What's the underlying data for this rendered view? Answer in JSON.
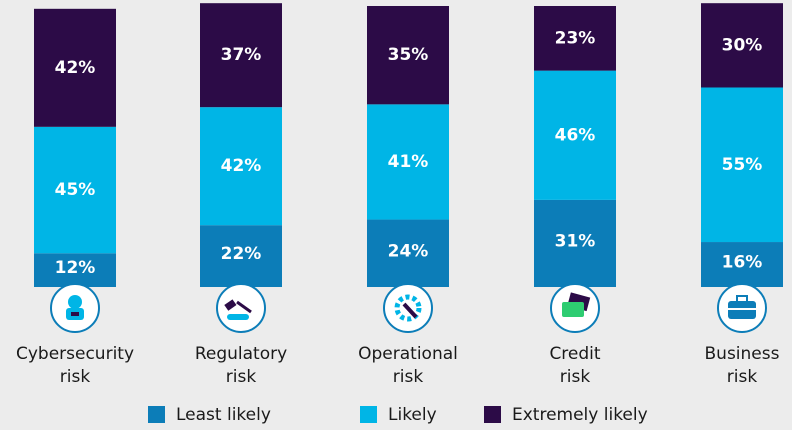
{
  "chart_data": {
    "type": "stacked_bar",
    "categories": [
      "Cybersecurity risk",
      "Regulatory risk",
      "Operational risk",
      "Credit risk",
      "Business risk"
    ],
    "ylim": [
      0,
      100
    ],
    "legend": "bottom",
    "series": [
      {
        "name": "Least likely",
        "color": "#0c7db8",
        "values": [
          12,
          22,
          24,
          31,
          16
        ],
        "value_labels": [
          "12%",
          "22%",
          "24%",
          "31%",
          "16%"
        ]
      },
      {
        "name": "Likely",
        "color": "#00b5e6",
        "values": [
          45,
          42,
          41,
          46,
          55
        ],
        "value_labels": [
          "45%",
          "42%",
          "41%",
          "46%",
          "55%"
        ]
      },
      {
        "name": "Extremely likely",
        "color": "#2c0b47",
        "values": [
          42,
          37,
          35,
          23,
          30
        ],
        "value_labels": [
          "42%",
          "37%",
          "35%",
          "23%",
          "30%"
        ]
      }
    ]
  }
}
